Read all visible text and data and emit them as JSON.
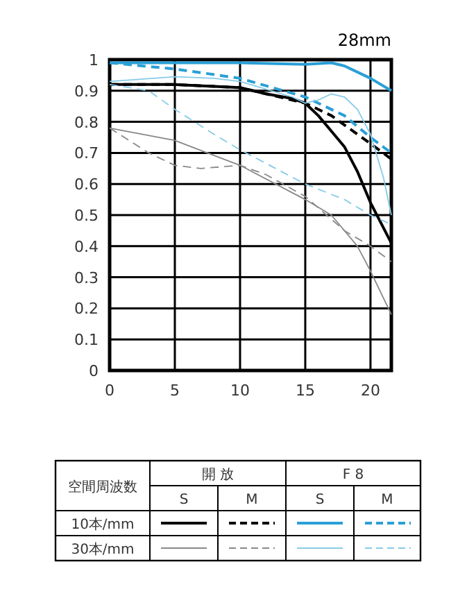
{
  "chart_data": {
    "type": "line",
    "title": "28mm",
    "xlim": [
      0,
      21.6
    ],
    "xticks": [
      0,
      5,
      10,
      15,
      20
    ],
    "ylim": [
      0,
      1
    ],
    "yticks": [
      0,
      0.1,
      0.2,
      0.3,
      0.4,
      0.5,
      0.6,
      0.7,
      0.8,
      0.9,
      1
    ],
    "grid": true,
    "annotations": [
      "空間周波数",
      "開 放",
      "F 8",
      "S",
      "M",
      "S",
      "M",
      "10本/mm",
      "30本/mm"
    ],
    "series": [
      {
        "color": "#000000",
        "line_style": "solid",
        "x": [
          0,
          5,
          10,
          12,
          14,
          15,
          16,
          17,
          18,
          19,
          20,
          21.6
        ],
        "values": [
          0.92,
          0.92,
          0.91,
          0.89,
          0.875,
          0.86,
          0.82,
          0.77,
          0.72,
          0.64,
          0.54,
          0.41
        ]
      },
      {
        "color": "#000000",
        "line_style": "dashed",
        "x": [
          0,
          5,
          10,
          15,
          17,
          19,
          20,
          21.6
        ],
        "values": [
          0.92,
          0.92,
          0.91,
          0.86,
          0.82,
          0.76,
          0.73,
          0.68
        ]
      },
      {
        "color": "#2a9fd6",
        "line_style": "solid",
        "x": [
          0,
          5,
          10,
          15,
          17,
          18,
          20,
          21.6
        ],
        "values": [
          0.99,
          0.99,
          0.99,
          0.985,
          0.99,
          0.98,
          0.94,
          0.9
        ]
      },
      {
        "color": "#2a9fd6",
        "line_style": "dashed",
        "x": [
          0,
          5,
          10,
          15,
          18,
          20,
          21.6
        ],
        "values": [
          0.99,
          0.97,
          0.94,
          0.88,
          0.82,
          0.75,
          0.7
        ]
      },
      {
        "color": "#888888",
        "line_style": "solid",
        "x": [
          0,
          5,
          10,
          15,
          17,
          19,
          20,
          21.6
        ],
        "values": [
          0.78,
          0.74,
          0.66,
          0.55,
          0.5,
          0.4,
          0.32,
          0.18
        ]
      },
      {
        "color": "#888888",
        "line_style": "dashed",
        "x": [
          0,
          3,
          5,
          7,
          10,
          12,
          15,
          18,
          20,
          21.6
        ],
        "values": [
          0.78,
          0.7,
          0.66,
          0.65,
          0.66,
          0.63,
          0.56,
          0.45,
          0.4,
          0.35
        ]
      },
      {
        "color": "#86cbe8",
        "line_style": "solid",
        "x": [
          0,
          5,
          8,
          10,
          14,
          15,
          16,
          17,
          18,
          19,
          20,
          21,
          21.6
        ],
        "values": [
          0.93,
          0.945,
          0.94,
          0.93,
          0.88,
          0.86,
          0.87,
          0.89,
          0.88,
          0.84,
          0.76,
          0.62,
          0.5
        ]
      },
      {
        "color": "#86cbe8",
        "line_style": "dashed",
        "x": [
          0,
          3,
          5,
          8,
          10,
          15,
          18,
          20,
          21.6
        ],
        "values": [
          0.92,
          0.9,
          0.84,
          0.76,
          0.71,
          0.6,
          0.55,
          0.5,
          0.47
        ]
      }
    ]
  }
}
